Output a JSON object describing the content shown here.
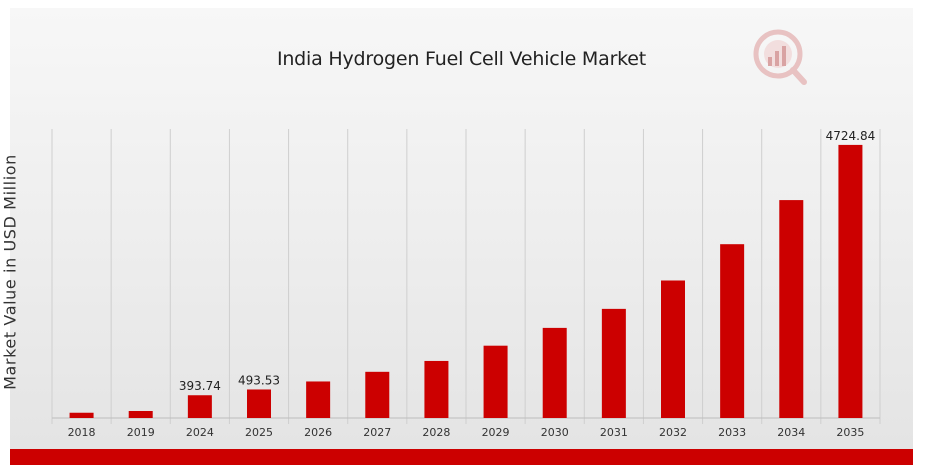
{
  "chart_data": {
    "type": "bar",
    "title": "India Hydrogen Fuel Cell Vehicle Market",
    "xlabel": "",
    "ylabel": "Market Value in USD Million",
    "categories": [
      "2018",
      "2019",
      "2024",
      "2025",
      "2026",
      "2027",
      "2028",
      "2029",
      "2030",
      "2031",
      "2032",
      "2033",
      "2034",
      "2035"
    ],
    "values": [
      91,
      121,
      393.74,
      493.53,
      632,
      799,
      987,
      1251,
      1559,
      1888,
      2379,
      3007,
      3770,
      4724.84
    ],
    "data_labels": [
      {
        "category": "2024",
        "text": "393.74"
      },
      {
        "category": "2025",
        "text": "493.53"
      },
      {
        "category": "2035",
        "text": "4724.84"
      }
    ],
    "ylim": [
      0,
      5000
    ],
    "grid": "vertical",
    "legend": "none",
    "bar_color": "#cc0000",
    "grid_color": "#cfcfcf"
  },
  "colors": {
    "accent": "#cc0000",
    "logo": "#d9a3a3"
  },
  "logo_icon": "magnifier-bar-chart-icon"
}
